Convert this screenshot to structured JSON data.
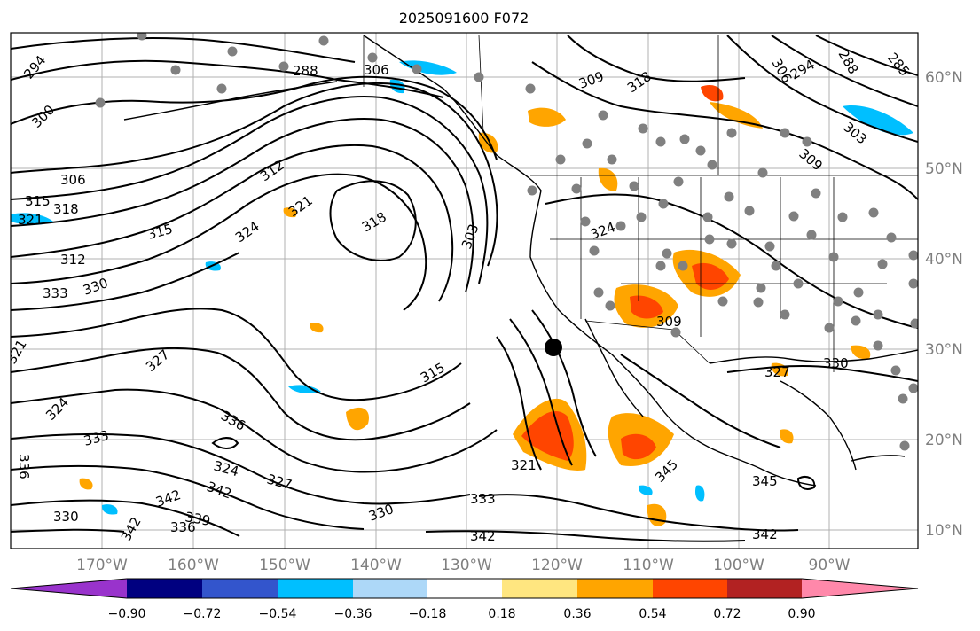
{
  "title": "2025091600 F072",
  "lon_ticks": [
    "170°W",
    "160°W",
    "150°W",
    "140°W",
    "130°W",
    "120°W",
    "110°W",
    "100°W",
    "90°W"
  ],
  "lat_ticks": [
    "60°N",
    "50°N",
    "40°N",
    "30°N",
    "20°N",
    "10°N"
  ],
  "colorbar": {
    "tick_labels": [
      "−0.90",
      "−0.72",
      "−0.54",
      "−0.36",
      "−0.18",
      "0.18",
      "0.36",
      "0.54",
      "0.72",
      "0.90"
    ],
    "colors": [
      "#9933cc",
      "#000080",
      "#3355cc",
      "#00bfff",
      "#add8f8",
      "#ffffff",
      "#ffe680",
      "#ffa500",
      "#ff4500",
      "#b22222",
      "#ff88aa"
    ]
  },
  "contour_labels": [
    "294",
    "300",
    "306",
    "315",
    "318",
    "321",
    "312",
    "333",
    "330",
    "324",
    "327",
    "336",
    "339",
    "342",
    "309",
    "303",
    "288",
    "285",
    "345"
  ],
  "colors": {
    "contour": "#000000",
    "grid": "#b0b0b0",
    "station_dot": "#808080",
    "marker": "#000000"
  }
}
